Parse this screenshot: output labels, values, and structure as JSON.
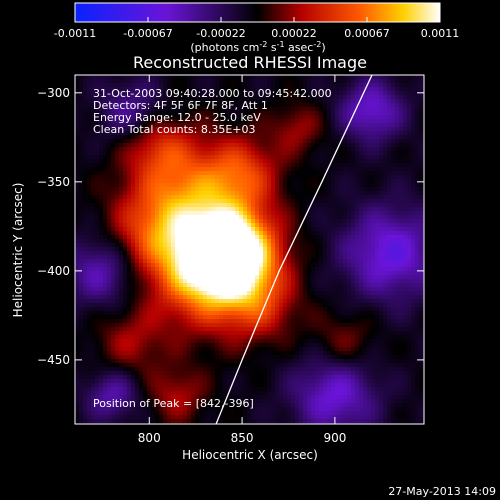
{
  "colorbar": {
    "tick_labels": [
      "-0.0011",
      "-0.00067",
      "-0.00022",
      "0.00022",
      "0.00067",
      "0.0011"
    ],
    "units_prefix": "(photons cm",
    "units_sup1": "-2",
    "units_mid1": " s",
    "units_sup2": "-1",
    "units_mid2": " asec",
    "units_sup3": "-2",
    "units_suffix": ")"
  },
  "plot": {
    "title": "Reconstructed RHESSI Image",
    "annotations": [
      "31-Oct-2003 09:40:28.000 to 09:45:42.000",
      "Detectors: 4F 5F 6F 7F 8F, Att 1",
      "Energy Range: 12.0 - 25.0 keV",
      "Clean     Total counts: 8.35E+03"
    ],
    "peak_label": "Position of Peak = [842,-396]",
    "peak": [
      842,
      -396
    ]
  },
  "chart_data": {
    "type": "heatmap",
    "title": "Reconstructed RHESSI Image",
    "xlabel": "Heliocentric X (arcsec)",
    "ylabel": "Heliocentric Y (arcsec)",
    "xlim": [
      760,
      948
    ],
    "ylim": [
      -486,
      -290
    ],
    "x_ticks": [
      800,
      850,
      900
    ],
    "y_ticks": [
      -300,
      -350,
      -400,
      -450
    ],
    "colorbar_range": [
      -0.0011,
      0.0011
    ],
    "colormap": "blue-purple-black-red-yellow-white",
    "limb_curve": [
      [
        836,
        -486
      ],
      [
        850,
        -450
      ],
      [
        870,
        -400
      ],
      [
        893,
        -350
      ],
      [
        920,
        -290
      ]
    ]
  },
  "footer": {
    "timestamp": "27-May-2013 14:09"
  }
}
